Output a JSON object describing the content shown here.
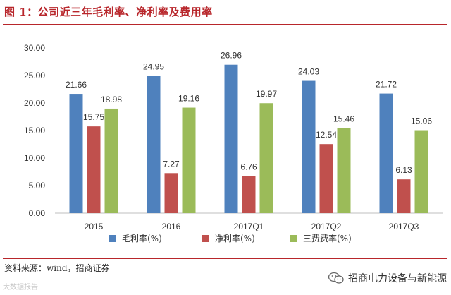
{
  "header": {
    "title": "图 1：公司近三年毛利率、净利率及费用率"
  },
  "footer": {
    "source": "资料来源：wind，招商证券",
    "brand": "招商电力设备与新能源",
    "watermark": "大数据报告"
  },
  "chart_data": {
    "type": "bar",
    "categories": [
      "2015",
      "2016",
      "2017Q1",
      "2017Q2",
      "2017Q3"
    ],
    "series": [
      {
        "name": "毛利率(%)",
        "values": [
          21.66,
          24.95,
          26.96,
          24.03,
          21.72
        ],
        "color": "#4f81bd",
        "labels": [
          "21.66",
          "24.95",
          "26.96",
          "24.03",
          "21.72"
        ]
      },
      {
        "name": "净利率(%)",
        "values": [
          15.75,
          7.27,
          6.76,
          12.54,
          6.13
        ],
        "color": "#c0504d",
        "labels": [
          "15.75",
          "7.27",
          "6.76",
          "12.54",
          "6.13"
        ]
      },
      {
        "name": "三费费率(%)",
        "values": [
          18.98,
          19.16,
          19.97,
          15.46,
          15.06
        ],
        "color": "#9bbb59",
        "labels": [
          "18.98",
          "19.16",
          "19.97",
          "15.46",
          "15.06"
        ]
      }
    ],
    "ylim": [
      0,
      30
    ],
    "yticks": [
      "0.00",
      "5.00",
      "10.00",
      "15.00",
      "20.00",
      "25.00",
      "30.00"
    ],
    "grid": false,
    "legend": "bottom"
  }
}
